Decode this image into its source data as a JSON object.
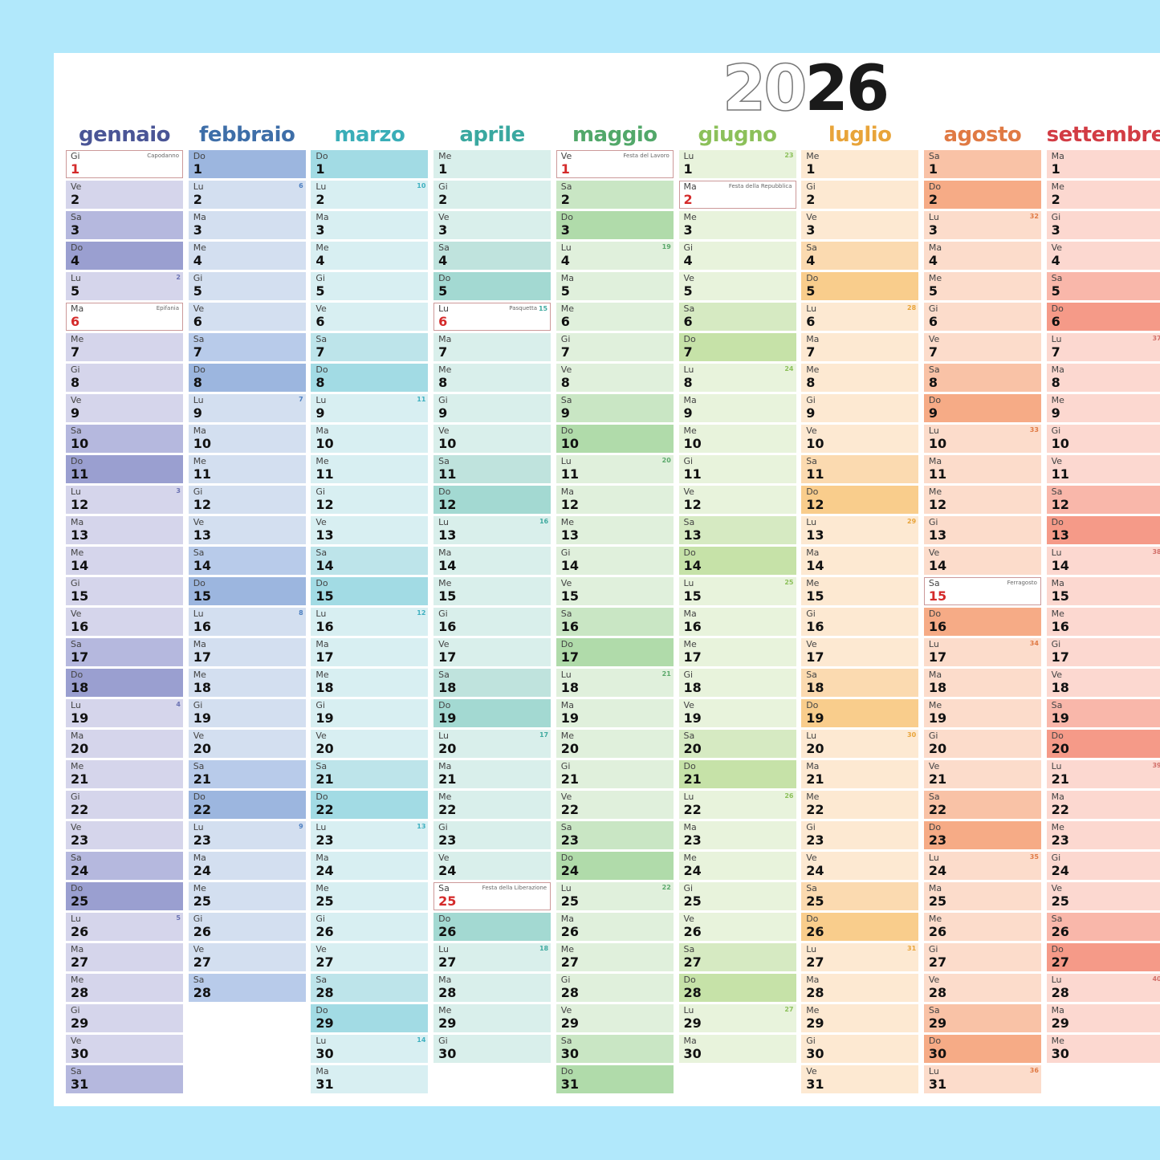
{
  "year": {
    "outline": "20",
    "solid": "26"
  },
  "months": [
    {
      "name": "gennaio",
      "color": "#4a5596",
      "shades": [
        "#d5d5eb",
        "#b5b8de",
        "#9a9fd0"
      ],
      "wkcolor": "#6b72b3",
      "days": 31,
      "weekdays": [
        "Gi",
        "Ve",
        "Sa",
        "Do",
        "Lu",
        "Ma",
        "Me",
        "Gi",
        "Ve",
        "Sa",
        "Do",
        "Lu",
        "Ma",
        "Me",
        "Gi",
        "Ve",
        "Sa",
        "Do",
        "Lu",
        "Ma",
        "Me",
        "Gi",
        "Ve",
        "Sa",
        "Do",
        "Lu",
        "Ma",
        "Me",
        "Gi",
        "Ve",
        "Sa"
      ],
      "holidays": {
        "1": "Capodanno",
        "6": "Epifania"
      },
      "weeks": {
        "5": "2",
        "12": "3",
        "19": "4",
        "26": "5"
      }
    },
    {
      "name": "febbraio",
      "color": "#3e6ea8",
      "shades": [
        "#d3dff0",
        "#b8cbea",
        "#9cb6df"
      ],
      "wkcolor": "#4d7fc0",
      "days": 28,
      "weekdays": [
        "Do",
        "Lu",
        "Ma",
        "Me",
        "Gi",
        "Ve",
        "Sa",
        "Do",
        "Lu",
        "Ma",
        "Me",
        "Gi",
        "Ve",
        "Sa",
        "Do",
        "Lu",
        "Ma",
        "Me",
        "Gi",
        "Ve",
        "Sa",
        "Do",
        "Lu",
        "Ma",
        "Me",
        "Gi",
        "Ve",
        "Sa"
      ],
      "holidays": {},
      "weeks": {
        "2": "6",
        "9": "7",
        "16": "8",
        "23": "9"
      }
    },
    {
      "name": "marzo",
      "color": "#3aaeb8",
      "shades": [
        "#d8eff2",
        "#bde4ea",
        "#a2dbe4"
      ],
      "wkcolor": "#3fb0c0",
      "days": 31,
      "weekdays": [
        "Do",
        "Lu",
        "Ma",
        "Me",
        "Gi",
        "Ve",
        "Sa",
        "Do",
        "Lu",
        "Ma",
        "Me",
        "Gi",
        "Ve",
        "Sa",
        "Do",
        "Lu",
        "Ma",
        "Me",
        "Gi",
        "Ve",
        "Sa",
        "Do",
        "Lu",
        "Ma",
        "Me",
        "Gi",
        "Ve",
        "Sa",
        "Do",
        "Lu",
        "Ma"
      ],
      "holidays": {},
      "weeks": {
        "2": "10",
        "9": "11",
        "16": "12",
        "23": "13",
        "30": "14"
      }
    },
    {
      "name": "aprile",
      "color": "#3aa8a0",
      "shades": [
        "#d9efeb",
        "#bfe3dd",
        "#a3d9d2"
      ],
      "wkcolor": "#40aaa0",
      "days": 30,
      "weekdays": [
        "Me",
        "Gi",
        "Ve",
        "Sa",
        "Do",
        "Lu",
        "Ma",
        "Me",
        "Gi",
        "Ve",
        "Sa",
        "Do",
        "Lu",
        "Ma",
        "Me",
        "Gi",
        "Ve",
        "Sa",
        "Do",
        "Lu",
        "Ma",
        "Me",
        "Gi",
        "Ve",
        "Sa",
        "Do",
        "Lu",
        "Ma",
        "Me",
        "Gi"
      ],
      "holidays": {
        "6": "Pasquetta",
        "25": "Festa della Liberazione"
      },
      "weeks": {
        "6": "15",
        "13": "16",
        "20": "17",
        "27": "18"
      }
    },
    {
      "name": "maggio",
      "color": "#52a86a",
      "shades": [
        "#e0f0dc",
        "#c9e6c4",
        "#b0dbaa"
      ],
      "wkcolor": "#5aa86a",
      "days": 31,
      "weekdays": [
        "Ve",
        "Sa",
        "Do",
        "Lu",
        "Ma",
        "Me",
        "Gi",
        "Ve",
        "Sa",
        "Do",
        "Lu",
        "Ma",
        "Me",
        "Gi",
        "Ve",
        "Sa",
        "Do",
        "Lu",
        "Ma",
        "Me",
        "Gi",
        "Ve",
        "Sa",
        "Do",
        "Lu",
        "Ma",
        "Me",
        "Gi",
        "Ve",
        "Sa",
        "Do"
      ],
      "holidays": {
        "1": "Festa del Lavoro"
      },
      "weeks": {
        "4": "19",
        "11": "20",
        "18": "21",
        "25": "22"
      }
    },
    {
      "name": "giugno",
      "color": "#8cc05a",
      "shades": [
        "#e8f3dc",
        "#d6eac2",
        "#c6e2a8"
      ],
      "wkcolor": "#8cc05a",
      "days": 30,
      "weekdays": [
        "Lu",
        "Ma",
        "Me",
        "Gi",
        "Ve",
        "Sa",
        "Do",
        "Lu",
        "Ma",
        "Me",
        "Gi",
        "Ve",
        "Sa",
        "Do",
        "Lu",
        "Ma",
        "Me",
        "Gi",
        "Ve",
        "Sa",
        "Do",
        "Lu",
        "Ma",
        "Me",
        "Gi",
        "Ve",
        "Sa",
        "Do",
        "Lu",
        "Ma"
      ],
      "holidays": {
        "2": "Festa della Repubblica"
      },
      "weeks": {
        "1": "23",
        "8": "24",
        "15": "25",
        "22": "26",
        "29": "27"
      }
    },
    {
      "name": "luglio",
      "color": "#e8a43a",
      "shades": [
        "#fde9d2",
        "#fbdab0",
        "#f9cd8c"
      ],
      "wkcolor": "#e8a43a",
      "days": 31,
      "weekdays": [
        "Me",
        "Gi",
        "Ve",
        "Sa",
        "Do",
        "Lu",
        "Ma",
        "Me",
        "Gi",
        "Ve",
        "Sa",
        "Do",
        "Lu",
        "Ma",
        "Me",
        "Gi",
        "Ve",
        "Sa",
        "Do",
        "Lu",
        "Ma",
        "Me",
        "Gi",
        "Ve",
        "Sa",
        "Do",
        "Lu",
        "Ma",
        "Me",
        "Gi",
        "Ve"
      ],
      "holidays": {},
      "weeks": {
        "6": "28",
        "13": "29",
        "20": "30",
        "27": "31"
      }
    },
    {
      "name": "agosto",
      "color": "#e07a44",
      "shades": [
        "#fcdccb",
        "#f9c2a6",
        "#f6ab86"
      ],
      "wkcolor": "#e07a44",
      "days": 31,
      "weekdays": [
        "Sa",
        "Do",
        "Lu",
        "Ma",
        "Me",
        "Gi",
        "Ve",
        "Sa",
        "Do",
        "Lu",
        "Ma",
        "Me",
        "Gi",
        "Ve",
        "Sa",
        "Do",
        "Lu",
        "Ma",
        "Me",
        "Gi",
        "Ve",
        "Sa",
        "Do",
        "Lu",
        "Ma",
        "Me",
        "Gi",
        "Ve",
        "Sa",
        "Do",
        "Lu"
      ],
      "holidays": {
        "15": "Ferragosto"
      },
      "weeks": {
        "3": "32",
        "10": "33",
        "17": "34",
        "24": "35",
        "31": "36"
      }
    },
    {
      "name": "settembre",
      "color": "#d23c44",
      "shades": [
        "#fcd8d0",
        "#f9b7aa",
        "#f59a88"
      ],
      "wkcolor": "#d2706a",
      "days": 30,
      "weekdays": [
        "Ma",
        "Me",
        "Gi",
        "Ve",
        "Sa",
        "Do",
        "Lu",
        "Ma",
        "Me",
        "Gi",
        "Ve",
        "Sa",
        "Do",
        "Lu",
        "Ma",
        "Me",
        "Gi",
        "Ve",
        "Sa",
        "Do",
        "Lu",
        "Ma",
        "Me",
        "Gi",
        "Ve",
        "Sa",
        "Do",
        "Lu",
        "Ma",
        "Me"
      ],
      "holidays": {},
      "weeks": {
        "7": "37",
        "14": "38",
        "21": "39",
        "28": "40"
      }
    }
  ]
}
